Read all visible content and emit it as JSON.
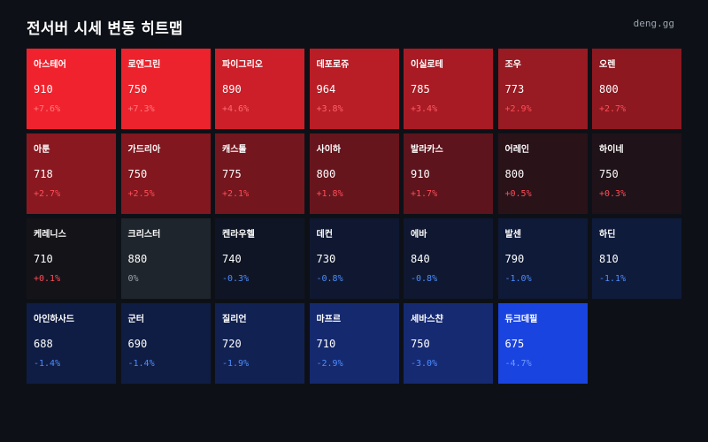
{
  "header": {
    "title": "전서버 시세 변동 히트맵",
    "brand": "deng.gg"
  },
  "colors": {
    "background": "#0d1117",
    "up_text_light": "#ff6b6b",
    "up_text": "#ff4d57",
    "flat_text": "#9aa3ad",
    "down_text": "#4d8dff"
  },
  "servers": [
    {
      "name": "아스테어",
      "price": "910",
      "change": "+7.6%",
      "pct": 7.6,
      "bg": "#f0222d",
      "fg": "#ff7b82"
    },
    {
      "name": "로엔그린",
      "price": "750",
      "change": "+7.3%",
      "pct": 7.3,
      "bg": "#ec232d",
      "fg": "#ff7b82"
    },
    {
      "name": "파이그리오",
      "price": "890",
      "change": "+4.6%",
      "pct": 4.6,
      "bg": "#cc1f29",
      "fg": "#ff6b72"
    },
    {
      "name": "데포로쥬",
      "price": "964",
      "change": "+3.8%",
      "pct": 3.8,
      "bg": "#b91d26",
      "fg": "#ff6269"
    },
    {
      "name": "이실로테",
      "price": "785",
      "change": "+3.4%",
      "pct": 3.4,
      "bg": "#a81b24",
      "fg": "#ff5a62"
    },
    {
      "name": "조우",
      "price": "773",
      "change": "+2.9%",
      "pct": 2.9,
      "bg": "#981a22",
      "fg": "#ff4f58"
    },
    {
      "name": "오렌",
      "price": "800",
      "change": "+2.7%",
      "pct": 2.7,
      "bg": "#8d1820",
      "fg": "#ff4f58"
    },
    {
      "name": "아툰",
      "price": "718",
      "change": "+2.7%",
      "pct": 2.7,
      "bg": "#8a1820",
      "fg": "#ff4f58"
    },
    {
      "name": "가드리아",
      "price": "750",
      "change": "+2.5%",
      "pct": 2.5,
      "bg": "#82171f",
      "fg": "#ff4f58"
    },
    {
      "name": "캐스톨",
      "price": "775",
      "change": "+2.1%",
      "pct": 2.1,
      "bg": "#74161e",
      "fg": "#ff4d57"
    },
    {
      "name": "사이하",
      "price": "800",
      "change": "+1.8%",
      "pct": 1.8,
      "bg": "#67151d",
      "fg": "#ff4d57"
    },
    {
      "name": "발라카스",
      "price": "910",
      "change": "+1.7%",
      "pct": 1.7,
      "bg": "#5e141c",
      "fg": "#ff4d57"
    },
    {
      "name": "어레인",
      "price": "800",
      "change": "+0.5%",
      "pct": 0.5,
      "bg": "#2a1219",
      "fg": "#ff4d57"
    },
    {
      "name": "하이네",
      "price": "750",
      "change": "+0.3%",
      "pct": 0.3,
      "bg": "#1f1218",
      "fg": "#ff4d57"
    },
    {
      "name": "케레니스",
      "price": "710",
      "change": "+0.1%",
      "pct": 0.1,
      "bg": "#141318",
      "fg": "#ff4d57"
    },
    {
      "name": "크리스터",
      "price": "880",
      "change": "0%",
      "pct": 0,
      "bg": "#1f252c",
      "fg": "#9aa3ad"
    },
    {
      "name": "켄라우헬",
      "price": "740",
      "change": "-0.3%",
      "pct": -0.3,
      "bg": "#0f1524",
      "fg": "#4d8dff"
    },
    {
      "name": "데컨",
      "price": "730",
      "change": "-0.8%",
      "pct": -0.8,
      "bg": "#0f1830",
      "fg": "#4d8dff"
    },
    {
      "name": "에바",
      "price": "840",
      "change": "-0.8%",
      "pct": -0.8,
      "bg": "#0f1830",
      "fg": "#4d8dff"
    },
    {
      "name": "발센",
      "price": "790",
      "change": "-1.0%",
      "pct": -1.0,
      "bg": "#0f1a38",
      "fg": "#4d8dff"
    },
    {
      "name": "하딘",
      "price": "810",
      "change": "-1.1%",
      "pct": -1.1,
      "bg": "#0f1b3b",
      "fg": "#4d8dff"
    },
    {
      "name": "아인하사드",
      "price": "688",
      "change": "-1.4%",
      "pct": -1.4,
      "bg": "#0f1d44",
      "fg": "#4d8dff"
    },
    {
      "name": "군터",
      "price": "690",
      "change": "-1.4%",
      "pct": -1.4,
      "bg": "#0f1d44",
      "fg": "#4d8dff"
    },
    {
      "name": "질리언",
      "price": "720",
      "change": "-1.9%",
      "pct": -1.9,
      "bg": "#112152",
      "fg": "#4d8dff"
    },
    {
      "name": "마프르",
      "price": "710",
      "change": "-2.9%",
      "pct": -2.9,
      "bg": "#15296e",
      "fg": "#4d8dff"
    },
    {
      "name": "세바스챤",
      "price": "750",
      "change": "-3.0%",
      "pct": -3.0,
      "bg": "#162a72",
      "fg": "#4d8dff"
    },
    {
      "name": "듀크데필",
      "price": "675",
      "change": "-4.7%",
      "pct": -4.7,
      "bg": "#1a44e0",
      "fg": "#6f9bff"
    }
  ]
}
